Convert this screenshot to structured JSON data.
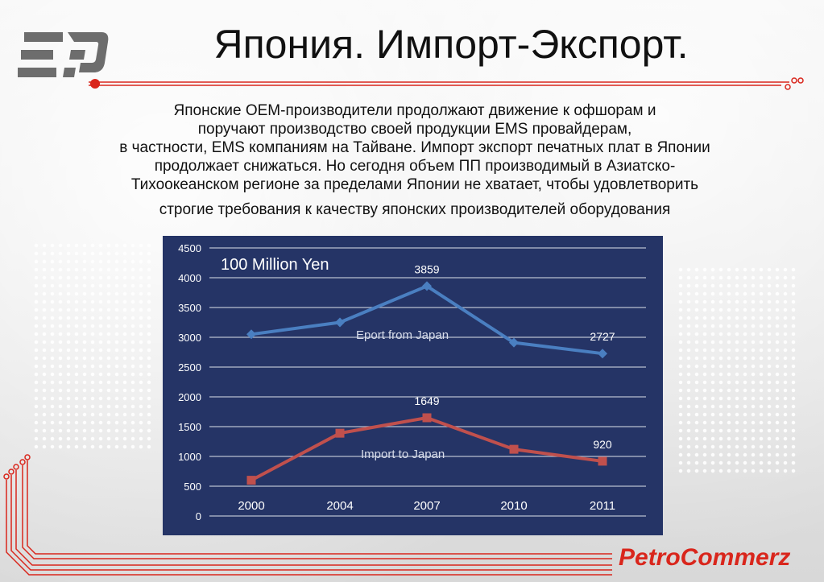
{
  "slide": {
    "title": "Япония. Импорт-Экспорт.",
    "paragraph_lines": [
      "Японские OEM-производители продолжают движение к офшорам и",
      "поручают производство своей продукции EMS провайдерам,",
      "в частности, EMS компаниям на Тайване. Импорт экспорт печатных плат в Японии",
      "продолжает снижаться. Но сегодня объем ПП производимый  в Азиатско-",
      "Тихоокеанском регионе за пределами Японии не хватает, чтобы удовлетворить",
      "строгие требования к качеству японских производителей оборудования"
    ],
    "brand": "PetroCommerz"
  },
  "colors": {
    "chart_bg": "#253466",
    "export_line": "#4a7fc1",
    "import_line": "#c0504d",
    "brand_red": "#d9261c"
  },
  "chart_data": {
    "type": "line",
    "title": "100 Million Yen",
    "categories": [
      "2000",
      "2004",
      "2007",
      "2010",
      "2011"
    ],
    "ylim": [
      0,
      4500
    ],
    "yticks": [
      0,
      500,
      1000,
      1500,
      2000,
      2500,
      3000,
      3500,
      4000,
      4500
    ],
    "grid": true,
    "series": [
      {
        "name": "Eport from Japan",
        "values": [
          3050,
          3250,
          3859,
          2910,
          2727
        ],
        "labels": [
          null,
          null,
          "3859",
          null,
          "2727"
        ],
        "color": "#4a7fc1",
        "marker": "diamond"
      },
      {
        "name": "Import to Japan",
        "values": [
          600,
          1390,
          1649,
          1120,
          920
        ],
        "labels": [
          null,
          null,
          "1649",
          null,
          "920"
        ],
        "color": "#c0504d",
        "marker": "square"
      }
    ]
  }
}
